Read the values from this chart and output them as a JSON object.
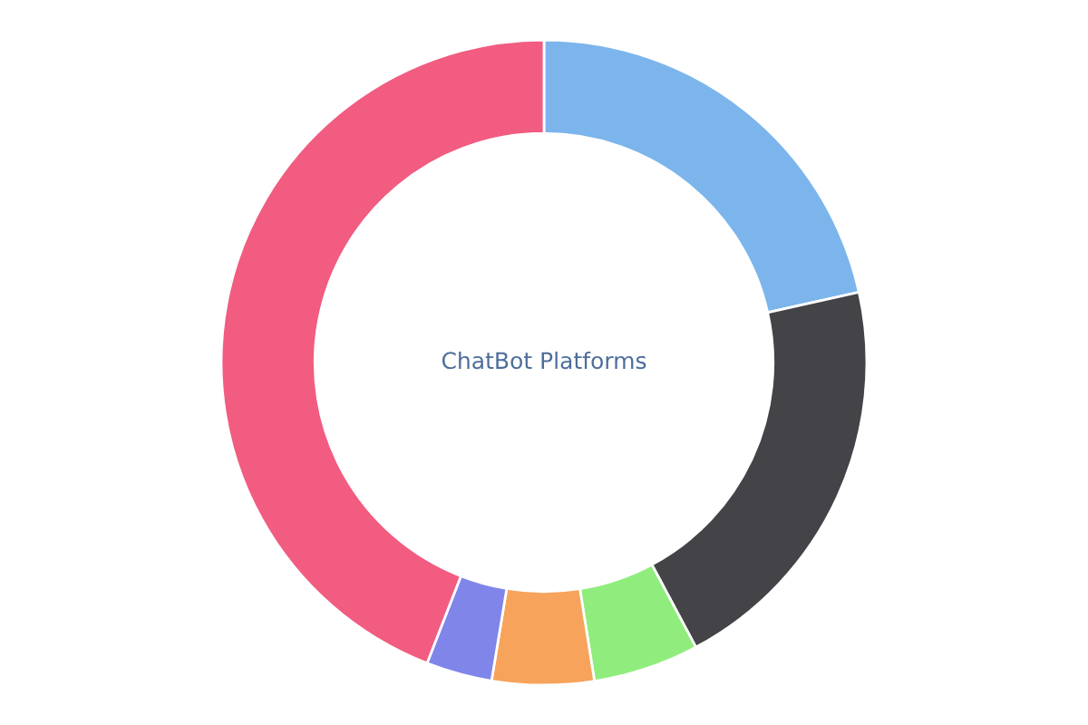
{
  "chart_data": {
    "type": "donut",
    "title": "ChatBot Platforms",
    "categories": [
      null,
      null,
      null,
      null,
      null,
      null
    ],
    "values": [
      21.5,
      20.7,
      5.3,
      5.1,
      3.3,
      44.1
    ],
    "colors": [
      "#7cb5ec",
      "#434348",
      "#90ed7d",
      "#f7a35c",
      "#8085e9",
      "#f15c80"
    ]
  }
}
